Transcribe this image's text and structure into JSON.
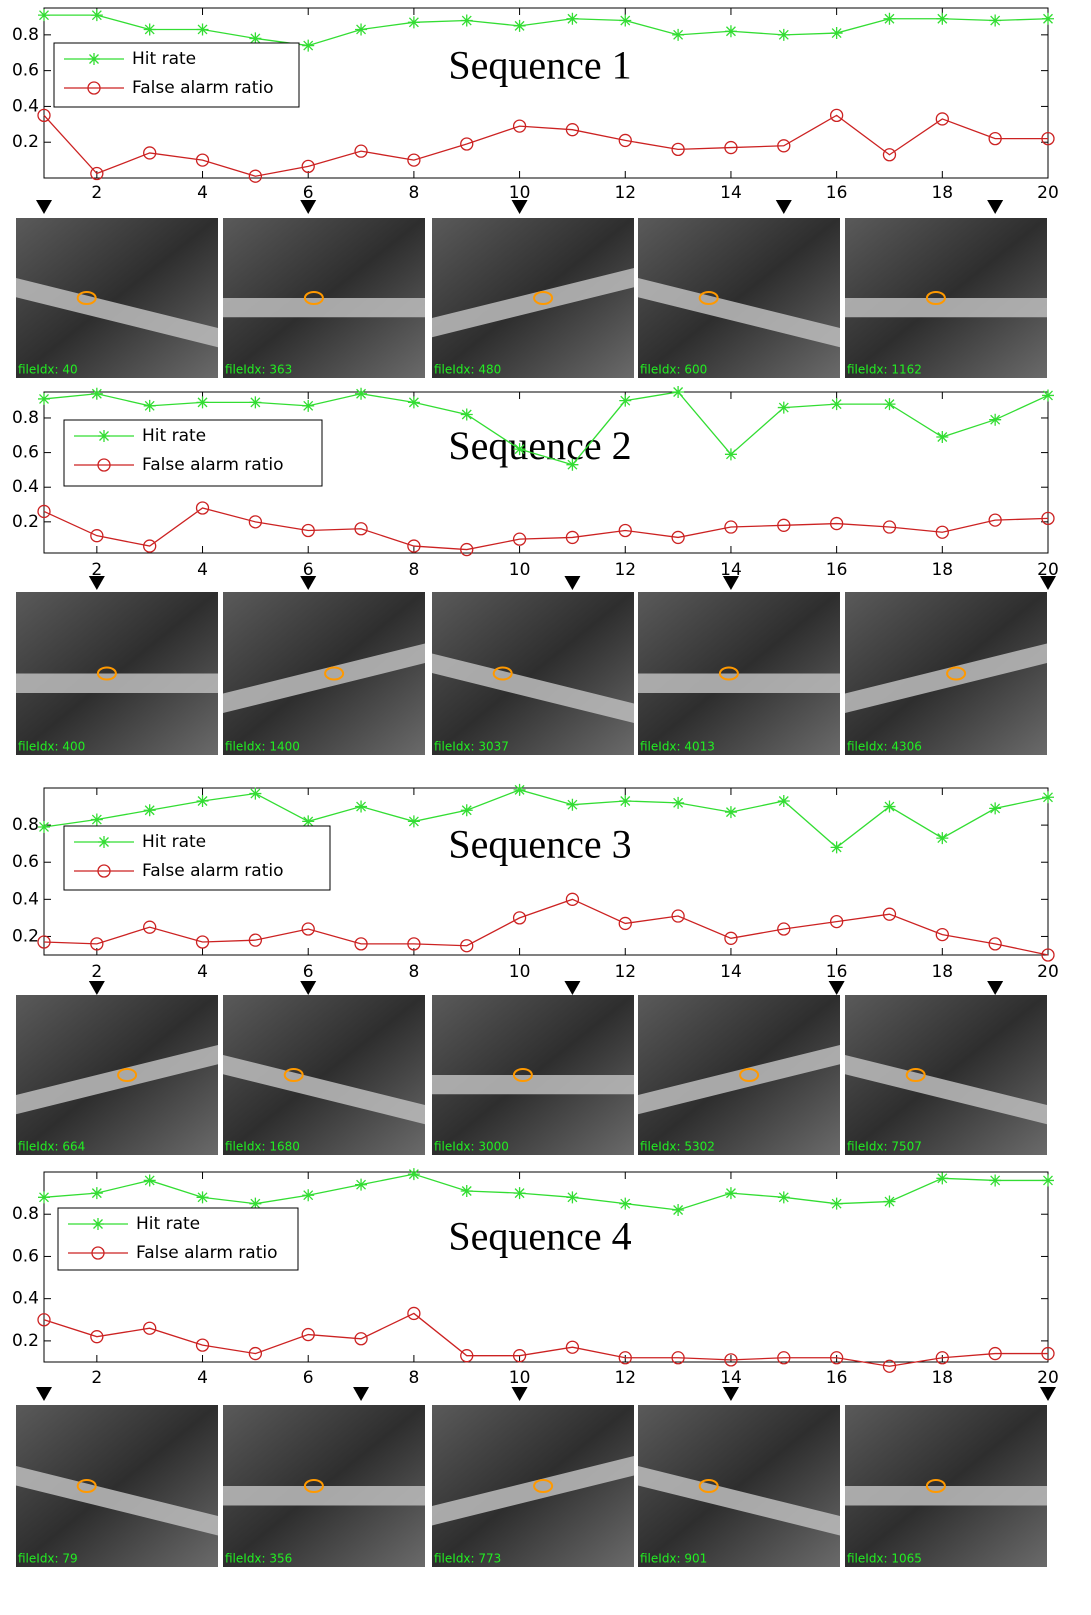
{
  "chart_data": [
    {
      "type": "line",
      "title": "Sequence 1",
      "x": [
        1,
        2,
        3,
        4,
        5,
        6,
        7,
        8,
        9,
        10,
        11,
        12,
        13,
        14,
        15,
        16,
        17,
        18,
        19,
        20
      ],
      "series": [
        {
          "name": "Hit rate",
          "color": "#33dd33",
          "marker": "star",
          "values": [
            0.91,
            0.91,
            0.83,
            0.83,
            0.78,
            0.74,
            0.83,
            0.87,
            0.88,
            0.85,
            0.89,
            0.88,
            0.8,
            0.82,
            0.8,
            0.81,
            0.89,
            0.89,
            0.88,
            0.89
          ]
        },
        {
          "name": "False alarm ratio",
          "color": "#cc2222",
          "marker": "circle",
          "values": [
            0.35,
            0.025,
            0.14,
            0.1,
            0.01,
            0.065,
            0.15,
            0.1,
            0.19,
            0.29,
            0.27,
            0.21,
            0.16,
            0.17,
            0.18,
            0.35,
            0.13,
            0.33,
            0.22,
            0.22
          ]
        }
      ],
      "xlim": [
        1,
        20
      ],
      "xticks": [
        2,
        4,
        6,
        8,
        10,
        12,
        14,
        16,
        18,
        20
      ],
      "ylim": [
        0,
        0.95
      ],
      "yticks": [
        0.2,
        0.4,
        0.6,
        0.8
      ],
      "grid": false,
      "legend": "upper left",
      "frame_x": [
        1,
        6,
        10,
        15,
        19
      ],
      "frame_labels": [
        "fileIdx: 40",
        "fileIdx: 363",
        "fileIdx: 480",
        "fileIdx: 600",
        "fileIdx: 1162"
      ]
    },
    {
      "type": "line",
      "title": "Sequence 2",
      "x": [
        1,
        2,
        3,
        4,
        5,
        6,
        7,
        8,
        9,
        10,
        11,
        12,
        13,
        14,
        15,
        16,
        17,
        18,
        19,
        20
      ],
      "series": [
        {
          "name": "Hit rate",
          "color": "#33dd33",
          "marker": "star",
          "values": [
            0.91,
            0.94,
            0.87,
            0.89,
            0.89,
            0.87,
            0.94,
            0.89,
            0.82,
            0.62,
            0.53,
            0.9,
            0.95,
            0.59,
            0.86,
            0.88,
            0.88,
            0.69,
            0.79,
            0.93
          ]
        },
        {
          "name": "False alarm ratio",
          "color": "#cc2222",
          "marker": "circle",
          "values": [
            0.26,
            0.12,
            0.06,
            0.28,
            0.2,
            0.15,
            0.16,
            0.06,
            0.04,
            0.1,
            0.11,
            0.15,
            0.11,
            0.17,
            0.18,
            0.19,
            0.17,
            0.14,
            0.21,
            0.22
          ]
        }
      ],
      "xlim": [
        1,
        20
      ],
      "xticks": [
        2,
        4,
        6,
        8,
        10,
        12,
        14,
        16,
        18,
        20
      ],
      "ylim": [
        0.02,
        0.95
      ],
      "yticks": [
        0.2,
        0.4,
        0.6,
        0.8
      ],
      "grid": false,
      "legend": "upper left",
      "frame_x": [
        2,
        6,
        11,
        14,
        20
      ],
      "frame_labels": [
        "fileIdx: 400",
        "fileIdx: 1400",
        "fileIdx: 3037",
        "fileIdx: 4013",
        "fileIdx: 4306"
      ]
    },
    {
      "type": "line",
      "title": "Sequence 3",
      "x": [
        1,
        2,
        3,
        4,
        5,
        6,
        7,
        8,
        9,
        10,
        11,
        12,
        13,
        14,
        15,
        16,
        17,
        18,
        19,
        20
      ],
      "series": [
        {
          "name": "Hit rate",
          "color": "#33dd33",
          "marker": "star",
          "values": [
            0.79,
            0.83,
            0.88,
            0.93,
            0.97,
            0.82,
            0.9,
            0.82,
            0.88,
            0.99,
            0.91,
            0.93,
            0.92,
            0.87,
            0.93,
            0.68,
            0.9,
            0.73,
            0.89,
            0.95
          ]
        },
        {
          "name": "False alarm ratio",
          "color": "#cc2222",
          "marker": "circle",
          "values": [
            0.17,
            0.16,
            0.25,
            0.17,
            0.18,
            0.24,
            0.16,
            0.16,
            0.15,
            0.3,
            0.4,
            0.27,
            0.31,
            0.19,
            0.24,
            0.28,
            0.32,
            0.21,
            0.16,
            0.1
          ]
        }
      ],
      "xlim": [
        1,
        20
      ],
      "xticks": [
        2,
        4,
        6,
        8,
        10,
        12,
        14,
        16,
        18,
        20
      ],
      "ylim": [
        0.1,
        1.0
      ],
      "yticks": [
        0.2,
        0.4,
        0.6,
        0.8
      ],
      "grid": false,
      "legend": "upper left",
      "frame_x": [
        2,
        6,
        11,
        16,
        19
      ],
      "frame_labels": [
        "fileIdx: 664",
        "fileIdx: 1680",
        "fileIdx: 3000",
        "fileIdx: 5302",
        "fileIdx: 7507"
      ]
    },
    {
      "type": "line",
      "title": "Sequence 4",
      "x": [
        1,
        2,
        3,
        4,
        5,
        6,
        7,
        8,
        9,
        10,
        11,
        12,
        13,
        14,
        15,
        16,
        17,
        18,
        19,
        20
      ],
      "series": [
        {
          "name": "Hit rate",
          "color": "#33dd33",
          "marker": "star",
          "values": [
            0.88,
            0.9,
            0.96,
            0.88,
            0.85,
            0.89,
            0.94,
            0.99,
            0.91,
            0.9,
            0.88,
            0.85,
            0.82,
            0.9,
            0.88,
            0.85,
            0.86,
            0.97,
            0.96,
            0.96
          ]
        },
        {
          "name": "False alarm ratio",
          "color": "#cc2222",
          "marker": "circle",
          "values": [
            0.3,
            0.22,
            0.26,
            0.18,
            0.14,
            0.23,
            0.21,
            0.33,
            0.13,
            0.13,
            0.17,
            0.12,
            0.12,
            0.11,
            0.12,
            0.12,
            0.08,
            0.12,
            0.14,
            0.14
          ]
        }
      ],
      "xlim": [
        1,
        20
      ],
      "xticks": [
        2,
        4,
        6,
        8,
        10,
        12,
        14,
        16,
        18,
        20
      ],
      "ylim": [
        0.1,
        1.0
      ],
      "yticks": [
        0.2,
        0.4,
        0.6,
        0.8
      ],
      "grid": false,
      "legend": "upper left",
      "frame_x": [
        1,
        7,
        10,
        14,
        20
      ],
      "frame_labels": [
        "fileIdx: 79",
        "fileIdx: 356",
        "fileIdx: 773",
        "fileIdx: 901",
        "fileIdx: 1065"
      ]
    }
  ]
}
